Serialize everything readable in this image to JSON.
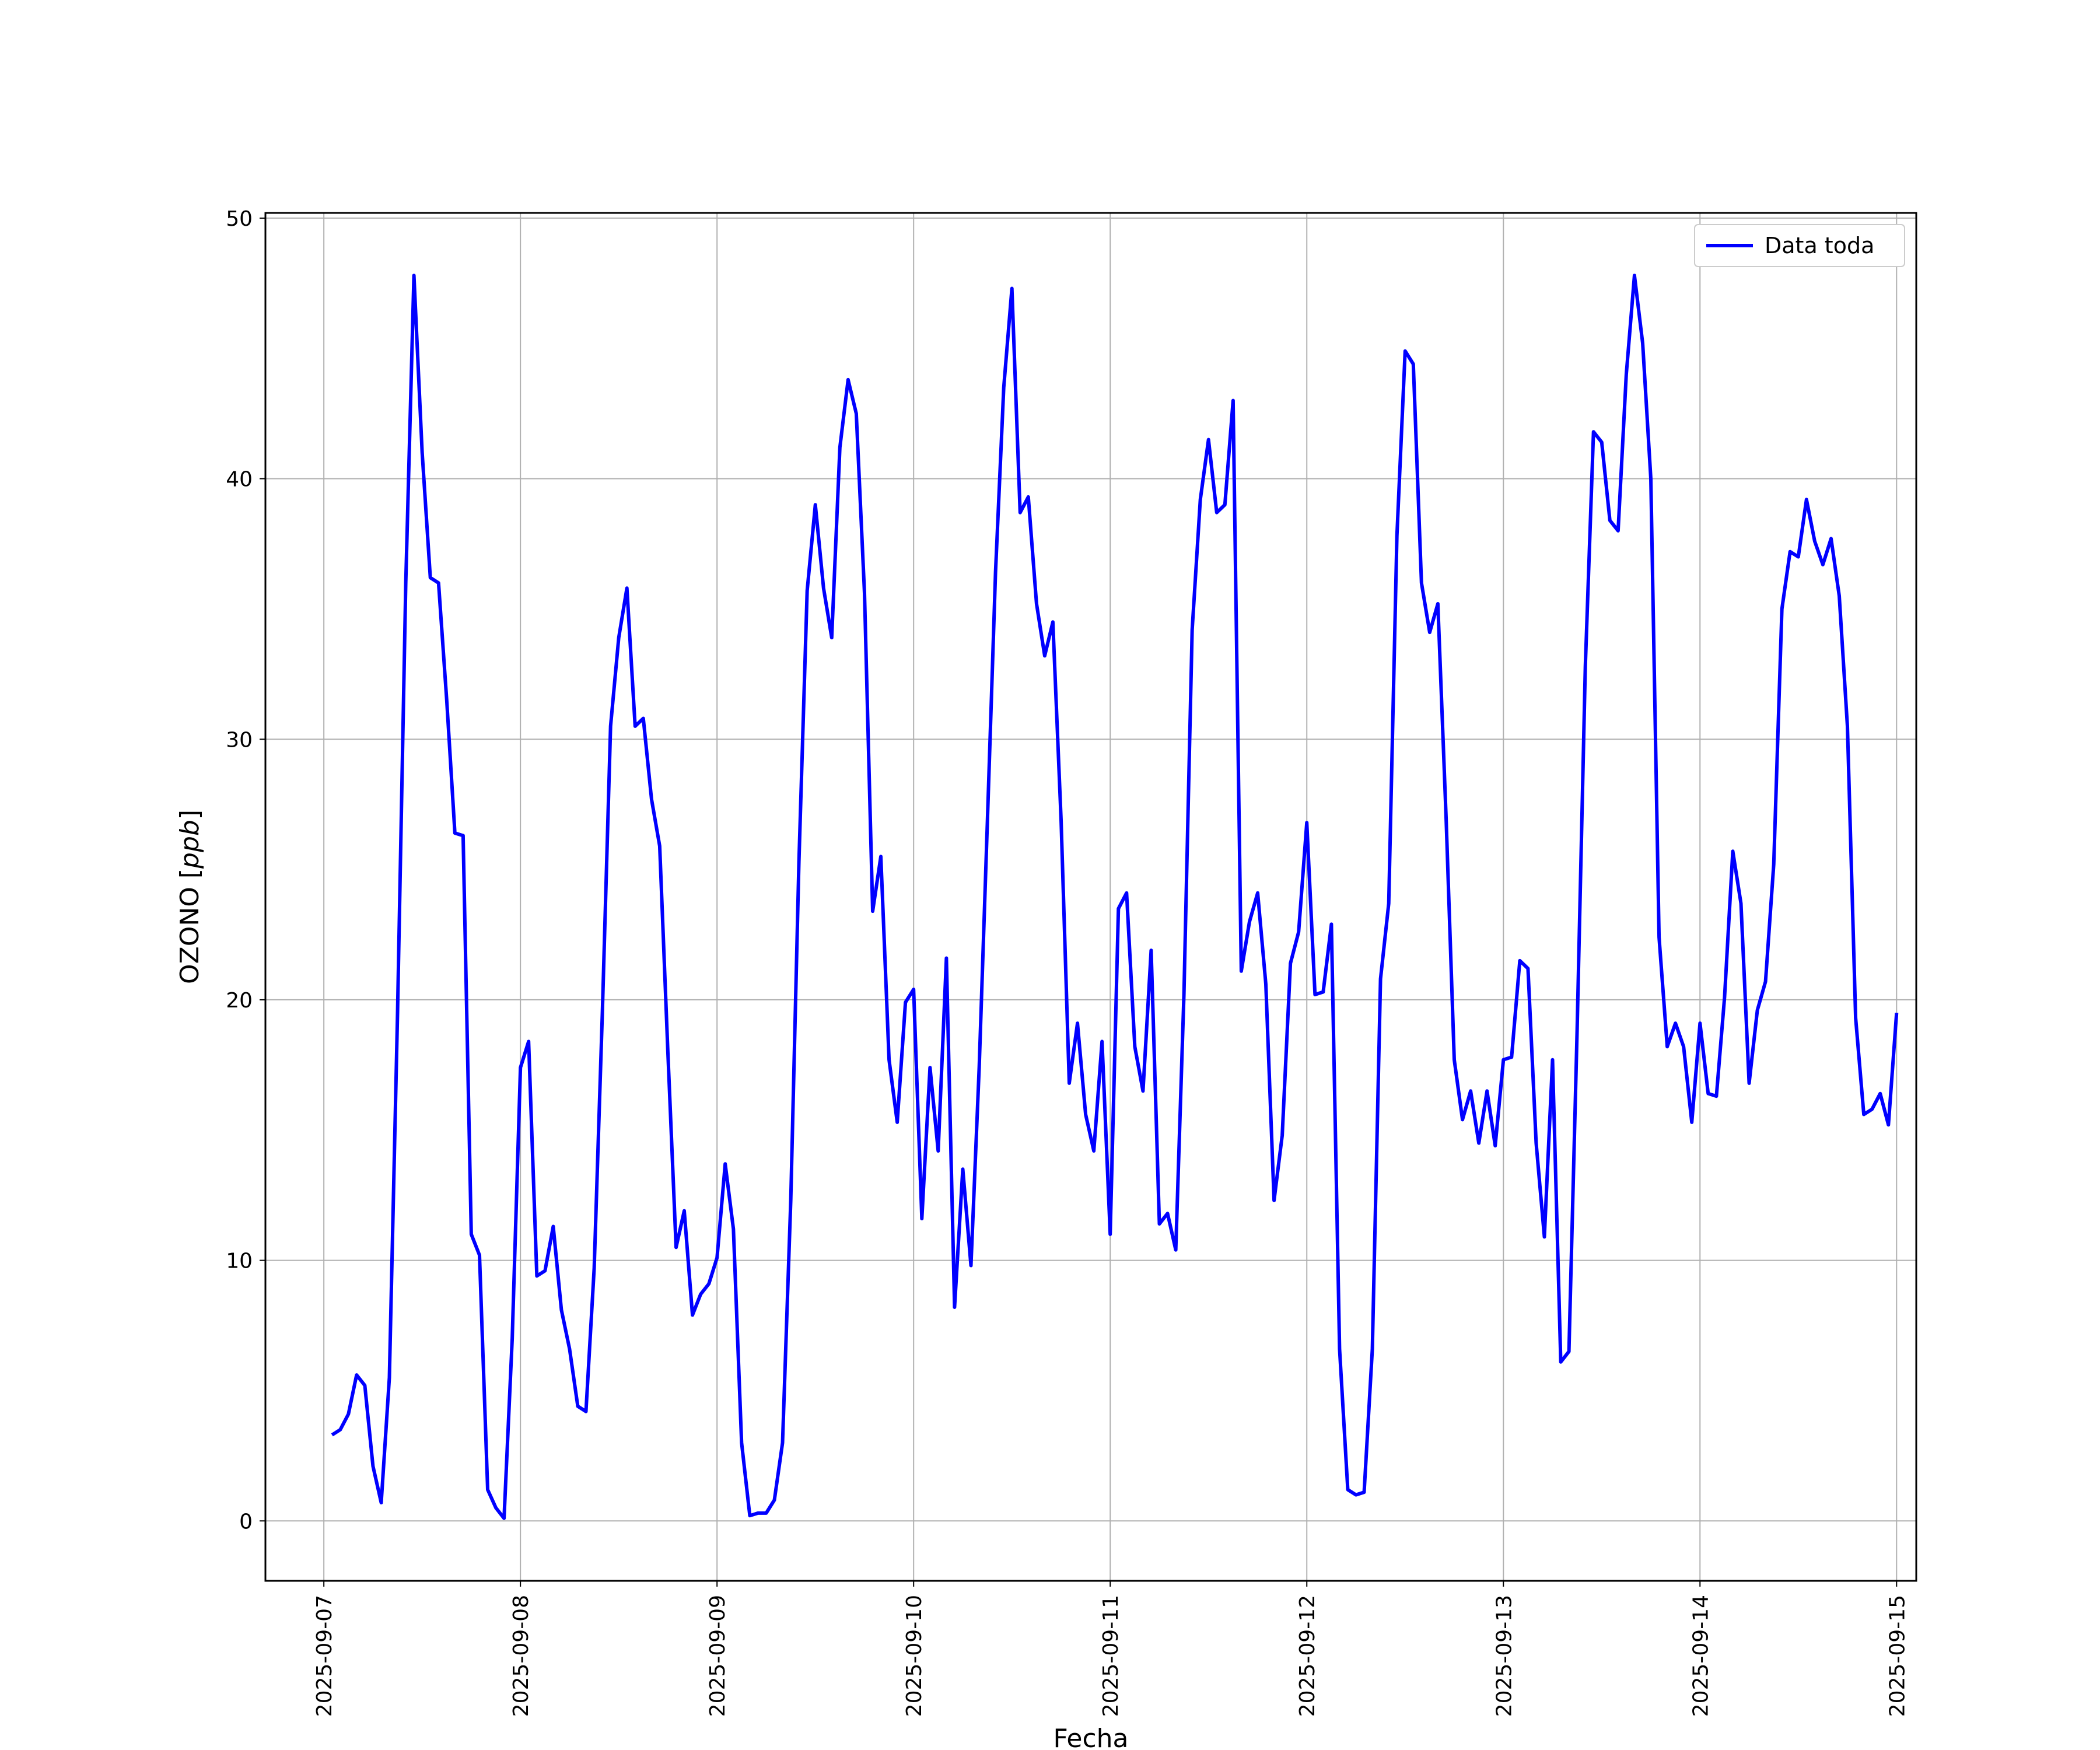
{
  "chart_data": {
    "type": "line",
    "xlabel": "Fecha",
    "ylabel": "OZONO [ppb]",
    "ylabel_italic_part": "ppb",
    "xlim": [
      "2025-09-06 16:52",
      "2025-09-15 02:24"
    ],
    "ylim": [
      -2.3,
      50.2
    ],
    "yticks": [
      0,
      10,
      20,
      30,
      40,
      50
    ],
    "xticks": [
      "2025-09-07",
      "2025-09-08",
      "2025-09-09",
      "2025-09-10",
      "2025-09-11",
      "2025-09-12",
      "2025-09-13",
      "2025-09-14",
      "2025-09-15"
    ],
    "grid": true,
    "legend": {
      "placement": "top-right"
    },
    "series": [
      {
        "name": "Data toda",
        "color": "#0000ff",
        "x": [
          "2025-09-07 01:00",
          "2025-09-07 02:00",
          "2025-09-07 03:00",
          "2025-09-07 04:00",
          "2025-09-07 05:00",
          "2025-09-07 06:00",
          "2025-09-07 07:00",
          "2025-09-07 08:00",
          "2025-09-07 09:00",
          "2025-09-07 10:00",
          "2025-09-07 11:00",
          "2025-09-07 12:00",
          "2025-09-07 13:00",
          "2025-09-07 14:00",
          "2025-09-07 15:00",
          "2025-09-07 16:00",
          "2025-09-07 17:00",
          "2025-09-07 18:00",
          "2025-09-07 19:00",
          "2025-09-07 20:00",
          "2025-09-07 21:00",
          "2025-09-07 22:00",
          "2025-09-07 23:00",
          "2025-09-08 00:00",
          "2025-09-08 01:00",
          "2025-09-08 02:00",
          "2025-09-08 03:00",
          "2025-09-08 04:00",
          "2025-09-08 05:00",
          "2025-09-08 06:00",
          "2025-09-08 07:00",
          "2025-09-08 08:00",
          "2025-09-08 09:00",
          "2025-09-08 10:00",
          "2025-09-08 11:00",
          "2025-09-08 12:00",
          "2025-09-08 13:00",
          "2025-09-08 14:00",
          "2025-09-08 15:00",
          "2025-09-08 16:00",
          "2025-09-08 17:00",
          "2025-09-08 18:00",
          "2025-09-08 19:00",
          "2025-09-08 20:00",
          "2025-09-08 21:00",
          "2025-09-08 22:00",
          "2025-09-08 23:00",
          "2025-09-09 00:00",
          "2025-09-09 01:00",
          "2025-09-09 02:00",
          "2025-09-09 03:00",
          "2025-09-09 04:00",
          "2025-09-09 05:00",
          "2025-09-09 06:00",
          "2025-09-09 07:00",
          "2025-09-09 08:00",
          "2025-09-09 09:00",
          "2025-09-09 10:00",
          "2025-09-09 11:00",
          "2025-09-09 12:00",
          "2025-09-09 13:00",
          "2025-09-09 14:00",
          "2025-09-09 15:00",
          "2025-09-09 16:00",
          "2025-09-09 17:00",
          "2025-09-09 18:00",
          "2025-09-09 19:00",
          "2025-09-09 20:00",
          "2025-09-09 21:00",
          "2025-09-09 22:00",
          "2025-09-09 23:00",
          "2025-09-10 00:00",
          "2025-09-10 01:00",
          "2025-09-10 02:00",
          "2025-09-10 03:00",
          "2025-09-10 04:00",
          "2025-09-10 05:00",
          "2025-09-10 06:00",
          "2025-09-10 07:00",
          "2025-09-10 08:00",
          "2025-09-10 09:00",
          "2025-09-10 10:00",
          "2025-09-10 11:00",
          "2025-09-10 12:00",
          "2025-09-10 13:00",
          "2025-09-10 14:00",
          "2025-09-10 15:00",
          "2025-09-10 16:00",
          "2025-09-10 17:00",
          "2025-09-10 18:00",
          "2025-09-10 19:00",
          "2025-09-10 20:00",
          "2025-09-10 21:00",
          "2025-09-10 22:00",
          "2025-09-10 23:00",
          "2025-09-11 00:00",
          "2025-09-11 01:00",
          "2025-09-11 02:00",
          "2025-09-11 03:00",
          "2025-09-11 04:00",
          "2025-09-11 05:00",
          "2025-09-11 06:00",
          "2025-09-11 07:00",
          "2025-09-11 08:00",
          "2025-09-11 09:00",
          "2025-09-11 10:00",
          "2025-09-11 11:00",
          "2025-09-11 12:00",
          "2025-09-11 13:00",
          "2025-09-11 14:00",
          "2025-09-11 15:00",
          "2025-09-11 16:00",
          "2025-09-11 17:00",
          "2025-09-11 18:00",
          "2025-09-11 19:00",
          "2025-09-11 20:00",
          "2025-09-11 21:00",
          "2025-09-11 22:00",
          "2025-09-11 23:00",
          "2025-09-12 00:00",
          "2025-09-12 01:00",
          "2025-09-12 02:00",
          "2025-09-12 03:00",
          "2025-09-12 04:00",
          "2025-09-12 05:00",
          "2025-09-12 06:00",
          "2025-09-12 07:00",
          "2025-09-12 08:00",
          "2025-09-12 09:00",
          "2025-09-12 10:00",
          "2025-09-12 11:00",
          "2025-09-12 12:00",
          "2025-09-12 13:00",
          "2025-09-12 14:00",
          "2025-09-12 15:00",
          "2025-09-12 16:00",
          "2025-09-12 17:00",
          "2025-09-12 18:00",
          "2025-09-12 19:00",
          "2025-09-12 20:00",
          "2025-09-12 21:00",
          "2025-09-12 22:00",
          "2025-09-12 23:00",
          "2025-09-13 00:00",
          "2025-09-13 01:00",
          "2025-09-13 02:00",
          "2025-09-13 03:00",
          "2025-09-13 04:00",
          "2025-09-13 05:00",
          "2025-09-13 06:00",
          "2025-09-13 07:00",
          "2025-09-13 08:00",
          "2025-09-13 09:00",
          "2025-09-13 10:00",
          "2025-09-13 11:00",
          "2025-09-13 12:00",
          "2025-09-13 13:00",
          "2025-09-13 14:00",
          "2025-09-13 15:00",
          "2025-09-13 16:00",
          "2025-09-13 17:00",
          "2025-09-13 18:00",
          "2025-09-13 19:00",
          "2025-09-13 20:00",
          "2025-09-13 21:00",
          "2025-09-13 22:00",
          "2025-09-13 23:00",
          "2025-09-14 00:00",
          "2025-09-14 01:00",
          "2025-09-14 02:00",
          "2025-09-14 03:00",
          "2025-09-14 04:00",
          "2025-09-14 05:00",
          "2025-09-14 06:00",
          "2025-09-14 07:00",
          "2025-09-14 08:00",
          "2025-09-14 09:00",
          "2025-09-14 10:00",
          "2025-09-14 11:00",
          "2025-09-14 12:00",
          "2025-09-14 13:00",
          "2025-09-14 14:00",
          "2025-09-14 15:00",
          "2025-09-14 16:00",
          "2025-09-14 17:00",
          "2025-09-14 18:00",
          "2025-09-14 19:00",
          "2025-09-14 20:00",
          "2025-09-14 21:00",
          "2025-09-14 22:00",
          "2025-09-14 23:00",
          "2025-09-15 00:00"
        ],
        "values": [
          3.3,
          3.5,
          4.1,
          5.6,
          5.2,
          2.1,
          0.7,
          5.5,
          19.5,
          36.0,
          47.8,
          41.0,
          36.2,
          36.0,
          31.5,
          26.4,
          26.3,
          11.0,
          10.2,
          1.2,
          0.5,
          0.1,
          7.0,
          17.4,
          18.4,
          9.4,
          9.6,
          11.3,
          8.1,
          6.6,
          4.4,
          4.2,
          9.7,
          19.5,
          30.5,
          33.9,
          35.8,
          30.5,
          30.8,
          27.7,
          25.9,
          18.0,
          10.5,
          11.9,
          7.9,
          8.7,
          9.1,
          10.1,
          13.7,
          11.2,
          3.0,
          0.2,
          0.3,
          0.3,
          0.8,
          3.0,
          12.3,
          25.3,
          35.7,
          39.0,
          35.8,
          33.9,
          41.2,
          43.8,
          42.5,
          35.6,
          23.4,
          25.5,
          17.7,
          15.3,
          19.9,
          20.4,
          11.6,
          17.4,
          14.2,
          21.6,
          8.2,
          13.5,
          9.8,
          17.4,
          26.8,
          36.4,
          43.5,
          47.3,
          38.7,
          39.3,
          35.2,
          33.2,
          34.5,
          26.9,
          16.8,
          19.1,
          15.6,
          14.2,
          18.4,
          11.0,
          23.5,
          24.1,
          18.2,
          16.5,
          21.9,
          11.4,
          11.8,
          10.4,
          20.2,
          34.2,
          39.2,
          41.5,
          38.7,
          39.0,
          43.0,
          21.1,
          23.0,
          24.1,
          20.6,
          12.3,
          14.8,
          21.4,
          22.6,
          26.8,
          20.2,
          20.3,
          22.9,
          6.6,
          1.2,
          1.0,
          1.1,
          6.6,
          20.8,
          23.7,
          37.8,
          44.9,
          44.4,
          36.0,
          34.1,
          35.2,
          27.0,
          17.7,
          15.4,
          16.5,
          14.5,
          16.5,
          14.4,
          17.7,
          17.8,
          21.5,
          21.2,
          14.5,
          10.9,
          17.7,
          6.1,
          6.5,
          18.8,
          32.8,
          41.8,
          41.4,
          38.4,
          38.0,
          44.0,
          47.8,
          45.2,
          40.0,
          22.4,
          18.2,
          19.1,
          18.2,
          15.3,
          19.1,
          16.4,
          16.3,
          20.1,
          25.7,
          23.7,
          16.8,
          19.6,
          20.7,
          25.2,
          35.0,
          37.2,
          37.0,
          39.2,
          37.6,
          36.7,
          37.7,
          35.5,
          30.5,
          19.3,
          15.6,
          15.8,
          16.4,
          15.2,
          19.5
        ]
      }
    ]
  }
}
